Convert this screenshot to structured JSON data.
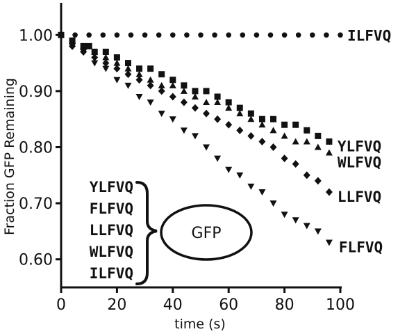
{
  "chart_data": {
    "type": "scatter",
    "title": "",
    "xlabel": "time (s)",
    "ylabel": "Fraction GFP Remaining",
    "xlim": [
      0,
      100
    ],
    "ylim": [
      0.55,
      1.05
    ],
    "x_ticks": [
      0,
      20,
      40,
      60,
      80,
      100
    ],
    "y_ticks": [
      0.6,
      0.7,
      0.8,
      0.9,
      1.0
    ],
    "x_tick_labels": [
      "0",
      "20",
      "40",
      "60",
      "80",
      "100"
    ],
    "y_tick_labels": [
      "0.60",
      "0.70",
      "0.80",
      "0.90",
      "1.00"
    ],
    "grid": false,
    "series": [
      {
        "name": "ILFVQ",
        "marker": "circle",
        "x": [
          0,
          5,
          10,
          15,
          20,
          25,
          30,
          35,
          40,
          45,
          50,
          55,
          60,
          65,
          70,
          75,
          80,
          85,
          90,
          95,
          100
        ],
        "y": [
          1.0,
          1.0,
          1.0,
          1.0,
          1.0,
          1.0,
          1.0,
          1.0,
          1.0,
          1.0,
          1.0,
          1.0,
          1.0,
          1.0,
          1.0,
          1.0,
          1.0,
          1.0,
          1.0,
          1.0,
          1.0
        ]
      },
      {
        "name": "YLFVQ",
        "marker": "square",
        "x": [
          0,
          4,
          8,
          10,
          12,
          16,
          20,
          24,
          28,
          32,
          36,
          40,
          44,
          48,
          52,
          56,
          60,
          64,
          68,
          72,
          76,
          80,
          84,
          88,
          92,
          96
        ],
        "y": [
          1.0,
          0.99,
          0.98,
          0.98,
          0.97,
          0.97,
          0.96,
          0.95,
          0.94,
          0.94,
          0.93,
          0.92,
          0.91,
          0.9,
          0.9,
          0.89,
          0.88,
          0.87,
          0.86,
          0.85,
          0.85,
          0.84,
          0.84,
          0.83,
          0.82,
          0.81
        ]
      },
      {
        "name": "WLFVQ",
        "marker": "triangle-up",
        "x": [
          4,
          8,
          12,
          16,
          20,
          24,
          28,
          32,
          36,
          40,
          44,
          48,
          52,
          56,
          60,
          64,
          68,
          72,
          76,
          80,
          84,
          88,
          92,
          96
        ],
        "y": [
          0.99,
          0.98,
          0.97,
          0.96,
          0.95,
          0.94,
          0.93,
          0.92,
          0.91,
          0.91,
          0.9,
          0.89,
          0.88,
          0.88,
          0.87,
          0.86,
          0.85,
          0.84,
          0.83,
          0.82,
          0.81,
          0.81,
          0.8,
          0.79
        ]
      },
      {
        "name": "LLFVQ",
        "marker": "diamond",
        "x": [
          4,
          8,
          12,
          16,
          20,
          24,
          28,
          32,
          36,
          40,
          44,
          48,
          52,
          56,
          60,
          64,
          68,
          72,
          76,
          80,
          84,
          88,
          92,
          96
        ],
        "y": [
          0.98,
          0.97,
          0.96,
          0.95,
          0.94,
          0.93,
          0.92,
          0.91,
          0.9,
          0.89,
          0.88,
          0.87,
          0.86,
          0.85,
          0.84,
          0.83,
          0.82,
          0.81,
          0.8,
          0.78,
          0.77,
          0.75,
          0.74,
          0.72
        ]
      },
      {
        "name": "FLFVQ",
        "marker": "triangle-down",
        "x": [
          4,
          8,
          12,
          16,
          20,
          24,
          28,
          32,
          36,
          40,
          44,
          48,
          52,
          56,
          60,
          64,
          68,
          72,
          76,
          80,
          84,
          88,
          92,
          96
        ],
        "y": [
          0.98,
          0.97,
          0.95,
          0.94,
          0.92,
          0.91,
          0.89,
          0.88,
          0.86,
          0.85,
          0.83,
          0.82,
          0.8,
          0.78,
          0.76,
          0.75,
          0.73,
          0.72,
          0.7,
          0.68,
          0.67,
          0.66,
          0.65,
          0.63
        ]
      }
    ],
    "series_label_texts": [
      "ILFVQ",
      "YLFVQ",
      "WLFVQ",
      "LLFVQ",
      "FLFVQ"
    ],
    "legend": {
      "placement": "bottom-left",
      "entries": [
        "YLFVQ",
        "FLFVQ",
        "LLFVQ",
        "WLFVQ",
        "ILFVQ"
      ],
      "target": "GFP"
    }
  }
}
